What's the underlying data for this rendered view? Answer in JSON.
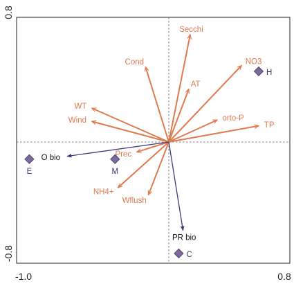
{
  "chart_data": {
    "type": "scatter",
    "xlim": [
      -1.0,
      0.8
    ],
    "ylim": [
      -0.8,
      0.8
    ],
    "x_ticks": [
      "-1.0",
      "0.8"
    ],
    "y_ticks": [
      "-0.8",
      "0.8"
    ],
    "reference_lines": {
      "x": 0,
      "y": 0
    },
    "grid": false,
    "colors": {
      "environmental": "#e07a4f",
      "biological": "#3d3a78",
      "site": "#7d6a9c",
      "frame": "#222222"
    },
    "environmental_vectors": [
      {
        "label": "Secchi",
        "x": 0.15,
        "y": 0.73
      },
      {
        "label": "Cond",
        "x": -0.16,
        "y": 0.51
      },
      {
        "label": "NO3",
        "x": 0.51,
        "y": 0.52
      },
      {
        "label": "AT",
        "x": 0.14,
        "y": 0.36
      },
      {
        "label": "WT",
        "x": -0.53,
        "y": 0.23
      },
      {
        "label": "Wind",
        "x": -0.53,
        "y": 0.14
      },
      {
        "label": "orto-P",
        "x": 0.34,
        "y": 0.15
      },
      {
        "label": "TP",
        "x": 0.63,
        "y": 0.11
      },
      {
        "label": "Prec",
        "x": -0.22,
        "y": -0.07
      },
      {
        "label": "NH4+",
        "x": -0.35,
        "y": -0.32
      },
      {
        "label": "Wflush",
        "x": -0.14,
        "y": -0.37
      }
    ],
    "biological_vectors": [
      {
        "label": "O bio",
        "x": -0.7,
        "y": -0.1
      },
      {
        "label": "PR bio",
        "x": 0.1,
        "y": -0.62
      }
    ],
    "sites": [
      {
        "label": "H",
        "x": 0.63,
        "y": 0.48
      },
      {
        "label": "E",
        "x": -0.96,
        "y": -0.12
      },
      {
        "label": "M",
        "x": -0.37,
        "y": -0.12
      },
      {
        "label": "C",
        "x": 0.07,
        "y": -0.78
      }
    ]
  }
}
